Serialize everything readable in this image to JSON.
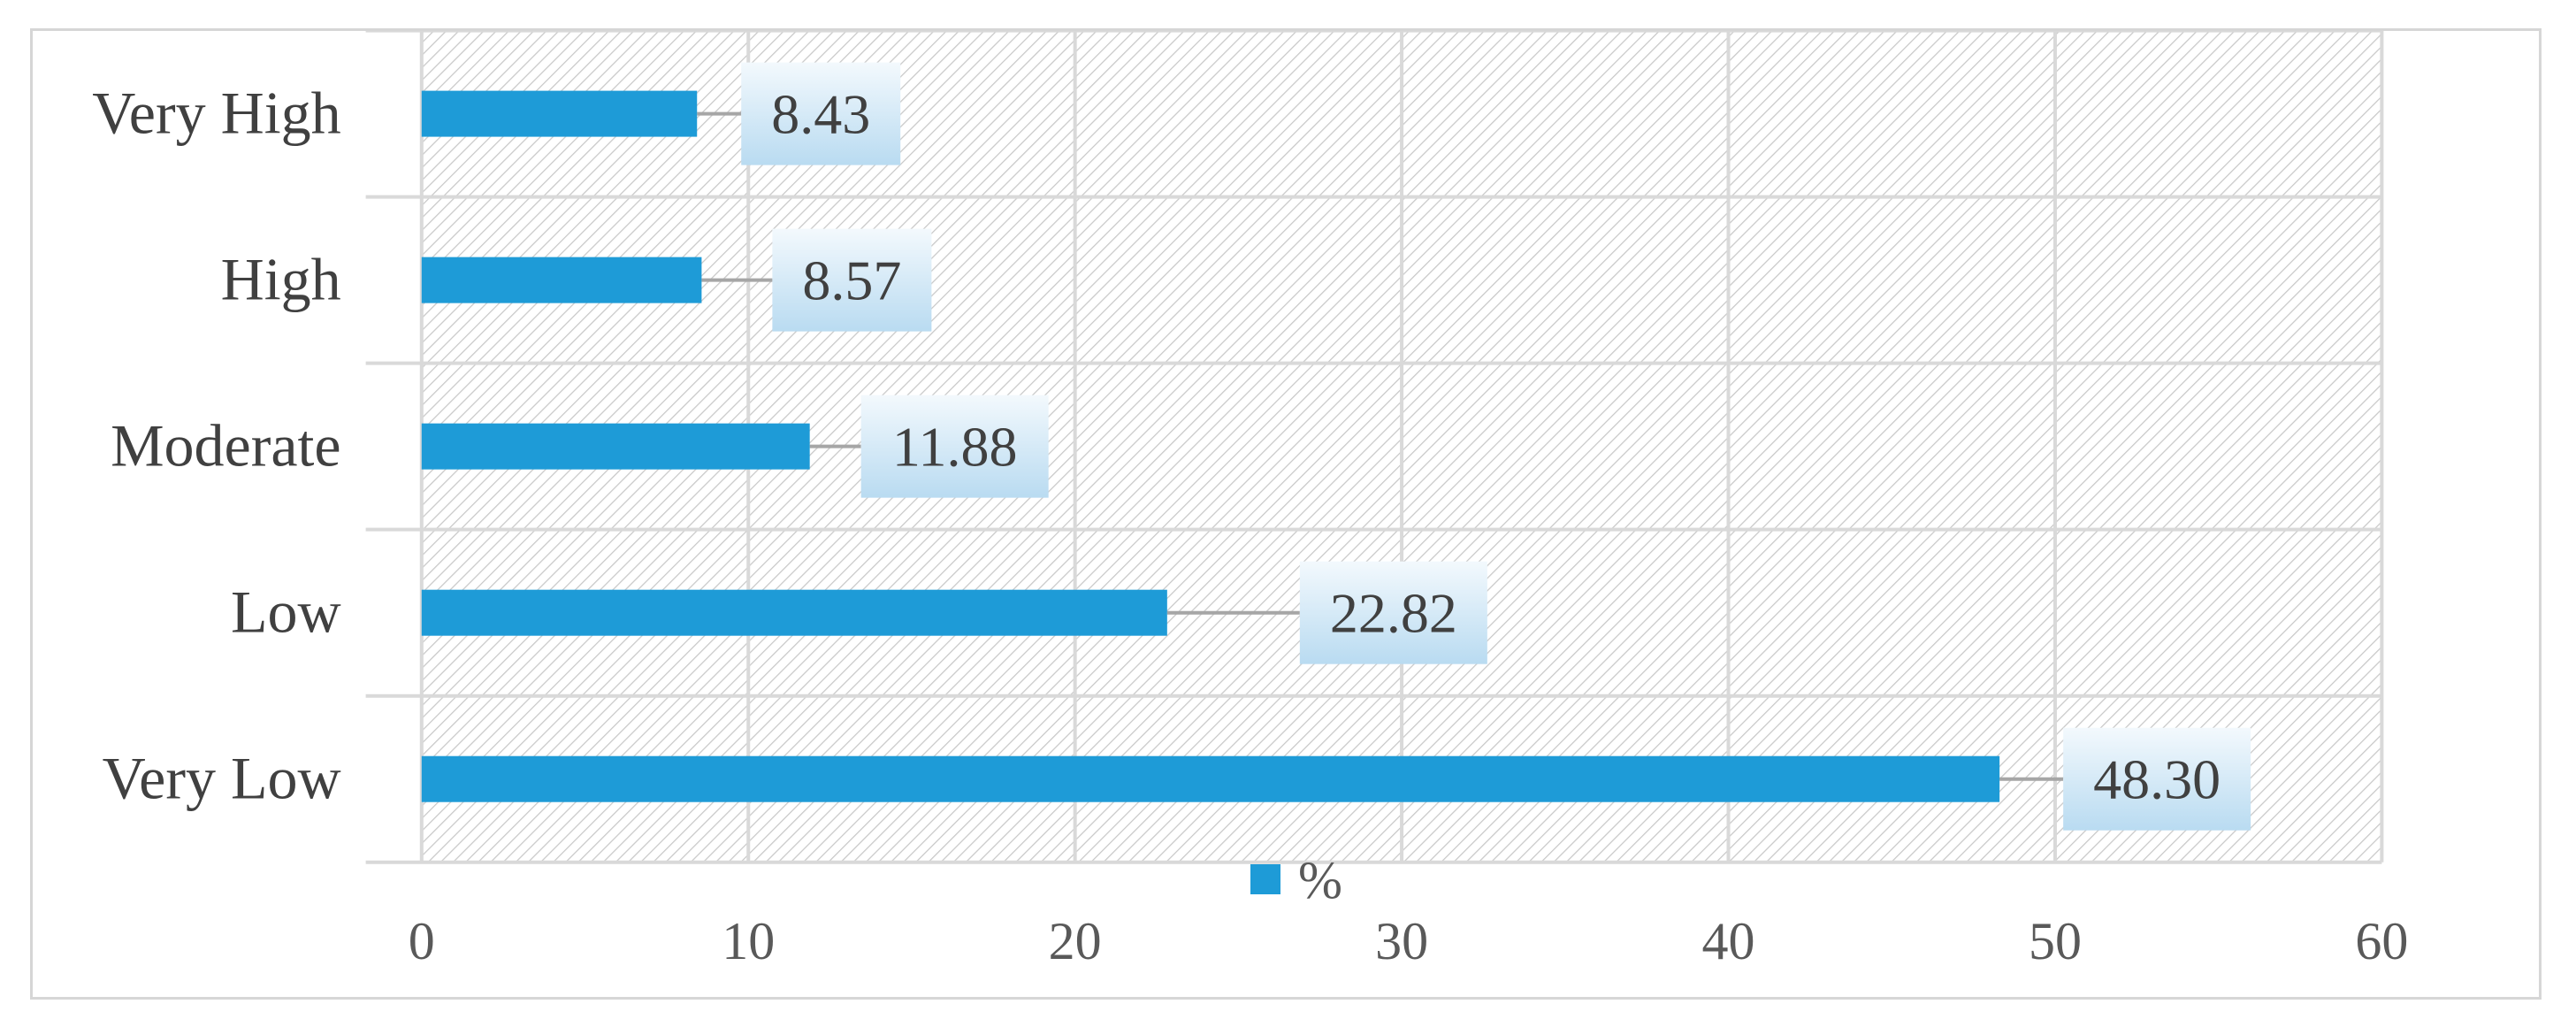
{
  "chart_data": {
    "type": "bar",
    "orientation": "horizontal",
    "categories": [
      "Very Low",
      "Low",
      "Moderate",
      "High",
      "Very High"
    ],
    "series": [
      {
        "name": "%",
        "values": [
          48.3,
          22.82,
          11.88,
          8.57,
          8.43
        ]
      }
    ],
    "data_labels": [
      "48.30",
      "22.82",
      "11.88",
      "8.57",
      "8.43"
    ],
    "xlim": [
      0,
      60
    ],
    "x_ticks": [
      "0",
      "10",
      "20",
      "30",
      "40",
      "50",
      "60"
    ],
    "title": "",
    "xlabel": "",
    "ylabel": "",
    "grid": true,
    "legend": {
      "placement": "bottom-center",
      "entries": [
        "%"
      ]
    },
    "colors": {
      "bar": "#1e9bd7",
      "label_box_top": "#f3f9fd",
      "label_box_bottom": "#b9dbf1",
      "grid": "#d9d9d9",
      "hatch": "#c8c8c8",
      "leader_line": "#a6a6a6"
    }
  }
}
